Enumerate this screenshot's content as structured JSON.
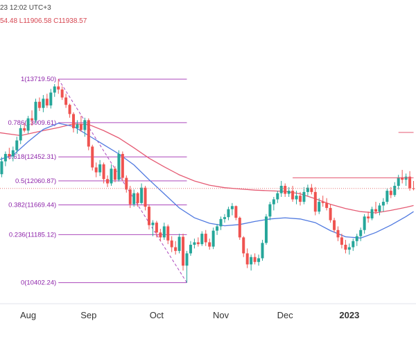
{
  "header": {
    "time_text": "23 12:02 UTC+3",
    "ohlc_text": "54.48  L11906.58  C11938.57"
  },
  "colors": {
    "up": "#26a69a",
    "down": "#ef5350",
    "fib": "#ab47bc",
    "ma_fast": "#4f79e0",
    "ma_slow": "#e55a73",
    "last_price": "#e57373"
  },
  "chart_data": {
    "type": "candlestick",
    "x_ticks": [
      {
        "label": "Aug",
        "t": 8
      },
      {
        "label": "Sep",
        "t": 24
      },
      {
        "label": "Oct",
        "t": 42
      },
      {
        "label": "Nov",
        "t": 59
      },
      {
        "label": "Dec",
        "t": 76
      },
      {
        "label": "2023",
        "t": 93,
        "bold": true
      }
    ],
    "ylim": [
      10150,
      14500
    ],
    "fib_levels": [
      {
        "text": "1(13719.50)",
        "value": 13719.5
      },
      {
        "text": "0.786(13009.61)",
        "value": 13009.61
      },
      {
        "text": "0.618(12452.31)",
        "value": 12452.31
      },
      {
        "text": "0.5(12060.87)",
        "value": 12060.87
      },
      {
        "text": "0.382(11669.44)",
        "value": 11669.44
      },
      {
        "text": "0.236(11185.12)",
        "value": 11185.12
      },
      {
        "text": "0(10402.24)",
        "value": 10402.24
      }
    ],
    "fib_range": {
      "t_start": 16,
      "t_end": 50
    },
    "fib_trend": [
      {
        "t": 16,
        "v": 13719.5
      },
      {
        "t": 50,
        "v": 10402.24
      }
    ],
    "last_price": 11938.57,
    "resistance": {
      "value": 12110,
      "t_start": 78,
      "t_end": 110
    },
    "resistance2": {
      "value": 12850,
      "t_start": 106,
      "t_end": 110
    },
    "ma_fast": [
      [
        0,
        12400
      ],
      [
        4,
        12480
      ],
      [
        8,
        12700
      ],
      [
        12,
        12900
      ],
      [
        16,
        13000
      ],
      [
        20,
        12950
      ],
      [
        24,
        12800
      ],
      [
        28,
        12650
      ],
      [
        32,
        12500
      ],
      [
        36,
        12320
      ],
      [
        40,
        12080
      ],
      [
        44,
        11850
      ],
      [
        48,
        11620
      ],
      [
        52,
        11460
      ],
      [
        56,
        11370
      ],
      [
        60,
        11330
      ],
      [
        64,
        11350
      ],
      [
        68,
        11400
      ],
      [
        72,
        11440
      ],
      [
        76,
        11460
      ],
      [
        80,
        11440
      ],
      [
        84,
        11380
      ],
      [
        88,
        11250
      ],
      [
        92,
        11150
      ],
      [
        96,
        11130
      ],
      [
        100,
        11220
      ],
      [
        104,
        11340
      ],
      [
        108,
        11480
      ],
      [
        110,
        11560
      ]
    ],
    "ma_slow": [
      [
        0,
        12850
      ],
      [
        6,
        12800
      ],
      [
        12,
        12880
      ],
      [
        16,
        12930
      ],
      [
        20,
        12990
      ],
      [
        24,
        12980
      ],
      [
        28,
        12880
      ],
      [
        32,
        12760
      ],
      [
        36,
        12600
      ],
      [
        40,
        12430
      ],
      [
        44,
        12290
      ],
      [
        48,
        12160
      ],
      [
        52,
        12060
      ],
      [
        56,
        11990
      ],
      [
        60,
        11950
      ],
      [
        64,
        11930
      ],
      [
        68,
        11910
      ],
      [
        72,
        11900
      ],
      [
        76,
        11890
      ],
      [
        80,
        11850
      ],
      [
        84,
        11770
      ],
      [
        88,
        11680
      ],
      [
        92,
        11610
      ],
      [
        96,
        11560
      ],
      [
        100,
        11540
      ],
      [
        104,
        11580
      ],
      [
        108,
        11630
      ],
      [
        110,
        11660
      ]
    ],
    "candles": [
      [
        0,
        12240,
        12310,
        12110,
        12170
      ],
      [
        1,
        12170,
        12450,
        12120,
        12380
      ],
      [
        2,
        12380,
        12540,
        12300,
        12500
      ],
      [
        3,
        12500,
        12600,
        12410,
        12460
      ],
      [
        4,
        12460,
        12620,
        12380,
        12560
      ],
      [
        5,
        12560,
        12780,
        12500,
        12720
      ],
      [
        6,
        12720,
        12980,
        12660,
        12920
      ],
      [
        7,
        12920,
        13000,
        12850,
        12880
      ],
      [
        8,
        12880,
        13120,
        12830,
        13080
      ],
      [
        9,
        13080,
        13210,
        12960,
        13050
      ],
      [
        10,
        13050,
        13400,
        13000,
        13350
      ],
      [
        11,
        13350,
        13420,
        13200,
        13250
      ],
      [
        12,
        13250,
        13460,
        13180,
        13400
      ],
      [
        13,
        13400,
        13480,
        13250,
        13290
      ],
      [
        14,
        13290,
        13560,
        13240,
        13500
      ],
      [
        15,
        13500,
        13640,
        13430,
        13600
      ],
      [
        16,
        13600,
        13720,
        13480,
        13550
      ],
      [
        17,
        13550,
        13600,
        13380,
        13420
      ],
      [
        18,
        13420,
        13480,
        13250,
        13300
      ],
      [
        19,
        13300,
        13320,
        13090,
        13150
      ],
      [
        20,
        13150,
        13180,
        12850,
        12920
      ],
      [
        21,
        12920,
        13050,
        12830,
        12980
      ],
      [
        22,
        12980,
        13120,
        12860,
        12890
      ],
      [
        23,
        12890,
        13090,
        12780,
        13050
      ],
      [
        24,
        13050,
        13080,
        12560,
        12620
      ],
      [
        25,
        12620,
        12650,
        12230,
        12280
      ],
      [
        26,
        12280,
        12360,
        12120,
        12200
      ],
      [
        27,
        12200,
        12400,
        12140,
        12330
      ],
      [
        28,
        12330,
        12360,
        12020,
        12090
      ],
      [
        29,
        12090,
        12150,
        11960,
        12020
      ],
      [
        30,
        12020,
        12330,
        11980,
        12260
      ],
      [
        31,
        12260,
        12300,
        12040,
        12080
      ],
      [
        32,
        12080,
        12560,
        12050,
        12500
      ],
      [
        33,
        12500,
        12540,
        12060,
        12110
      ],
      [
        34,
        12110,
        12150,
        11870,
        11920
      ],
      [
        35,
        11920,
        11980,
        11620,
        11680
      ],
      [
        36,
        11680,
        11920,
        11640,
        11860
      ],
      [
        37,
        11860,
        11880,
        11640,
        11700
      ],
      [
        38,
        11700,
        12020,
        11680,
        11950
      ],
      [
        39,
        11950,
        11980,
        11580,
        11640
      ],
      [
        40,
        11640,
        11680,
        11270,
        11340
      ],
      [
        41,
        11340,
        11420,
        11160,
        11380
      ],
      [
        42,
        11380,
        11410,
        11140,
        11220
      ],
      [
        43,
        11220,
        11280,
        11080,
        11140
      ],
      [
        44,
        11140,
        11380,
        11100,
        11320
      ],
      [
        45,
        11320,
        11350,
        11030,
        11090
      ],
      [
        46,
        11090,
        11160,
        10900,
        10980
      ],
      [
        47,
        10980,
        11080,
        10860,
        10920
      ],
      [
        48,
        10920,
        11200,
        10880,
        11150
      ],
      [
        49,
        11150,
        11200,
        10600,
        10680
      ],
      [
        50,
        10680,
        10920,
        10402,
        10880
      ],
      [
        51,
        10880,
        11080,
        10840,
        11020
      ],
      [
        52,
        11020,
        11120,
        10960,
        11060
      ],
      [
        53,
        11060,
        11140,
        10990,
        11030
      ],
      [
        54,
        11030,
        11240,
        11000,
        11200
      ],
      [
        55,
        11200,
        11260,
        11000,
        11060
      ],
      [
        56,
        11060,
        11120,
        10940,
        10990
      ],
      [
        57,
        10990,
        11300,
        10950,
        11250
      ],
      [
        58,
        11250,
        11360,
        11180,
        11320
      ],
      [
        59,
        11320,
        11480,
        11260,
        11440
      ],
      [
        60,
        11440,
        11520,
        11380,
        11470
      ],
      [
        61,
        11470,
        11640,
        11420,
        11600
      ],
      [
        62,
        11600,
        11700,
        11500,
        11650
      ],
      [
        63,
        11650,
        11660,
        11420,
        11460
      ],
      [
        64,
        11460,
        11480,
        11100,
        11140
      ],
      [
        65,
        11140,
        11160,
        10820,
        10880
      ],
      [
        66,
        10880,
        10960,
        10640,
        10700
      ],
      [
        67,
        10700,
        10860,
        10600,
        10820
      ],
      [
        68,
        10820,
        10880,
        10700,
        10740
      ],
      [
        69,
        10740,
        10860,
        10680,
        10800
      ],
      [
        70,
        10800,
        11100,
        10760,
        11050
      ],
      [
        71,
        11050,
        11520,
        11020,
        11480
      ],
      [
        72,
        11480,
        11720,
        11420,
        11680
      ],
      [
        73,
        11680,
        11800,
        11580,
        11760
      ],
      [
        74,
        11760,
        11900,
        11700,
        11860
      ],
      [
        75,
        11860,
        12060,
        11800,
        11980
      ],
      [
        76,
        11980,
        12020,
        11800,
        11850
      ],
      [
        77,
        11850,
        11960,
        11800,
        11900
      ],
      [
        78,
        11900,
        11980,
        11720,
        11760
      ],
      [
        79,
        11760,
        11900,
        11680,
        11820
      ],
      [
        80,
        11820,
        11880,
        11660,
        11720
      ],
      [
        81,
        11720,
        11960,
        11680,
        11880
      ],
      [
        82,
        11880,
        12000,
        11820,
        11950
      ],
      [
        83,
        11950,
        12010,
        11840,
        11880
      ],
      [
        84,
        11880,
        11960,
        11500,
        11560
      ],
      [
        85,
        11560,
        11780,
        11520,
        11720
      ],
      [
        86,
        11720,
        11820,
        11640,
        11700
      ],
      [
        87,
        11700,
        11780,
        11580,
        11620
      ],
      [
        88,
        11620,
        11680,
        11380,
        11420
      ],
      [
        89,
        11420,
        11460,
        11220,
        11260
      ],
      [
        90,
        11260,
        11320,
        11080,
        11140
      ],
      [
        91,
        11140,
        11200,
        10960,
        11020
      ],
      [
        92,
        11020,
        11100,
        10880,
        10940
      ],
      [
        93,
        10940,
        11040,
        10860,
        10980
      ],
      [
        94,
        10980,
        11120,
        10920,
        11080
      ],
      [
        95,
        11080,
        11200,
        11000,
        11160
      ],
      [
        96,
        11160,
        11300,
        11080,
        11260
      ],
      [
        97,
        11260,
        11520,
        11200,
        11480
      ],
      [
        98,
        11480,
        11560,
        11380,
        11450
      ],
      [
        99,
        11450,
        11640,
        11420,
        11600
      ],
      [
        100,
        11600,
        11720,
        11520,
        11560
      ],
      [
        101,
        11560,
        11700,
        11500,
        11660
      ],
      [
        102,
        11660,
        11780,
        11560,
        11720
      ],
      [
        103,
        11720,
        11940,
        11680,
        11900
      ],
      [
        104,
        11900,
        11960,
        11780,
        11830
      ],
      [
        105,
        11830,
        12040,
        11800,
        11980
      ],
      [
        106,
        11980,
        12160,
        11920,
        12120
      ],
      [
        107,
        12120,
        12240,
        12020,
        12080
      ],
      [
        108,
        12080,
        12180,
        11980,
        12130
      ],
      [
        109,
        12130,
        12220,
        11900,
        11940
      ],
      [
        110,
        11940,
        12060,
        11906.58,
        11938.57
      ]
    ]
  }
}
